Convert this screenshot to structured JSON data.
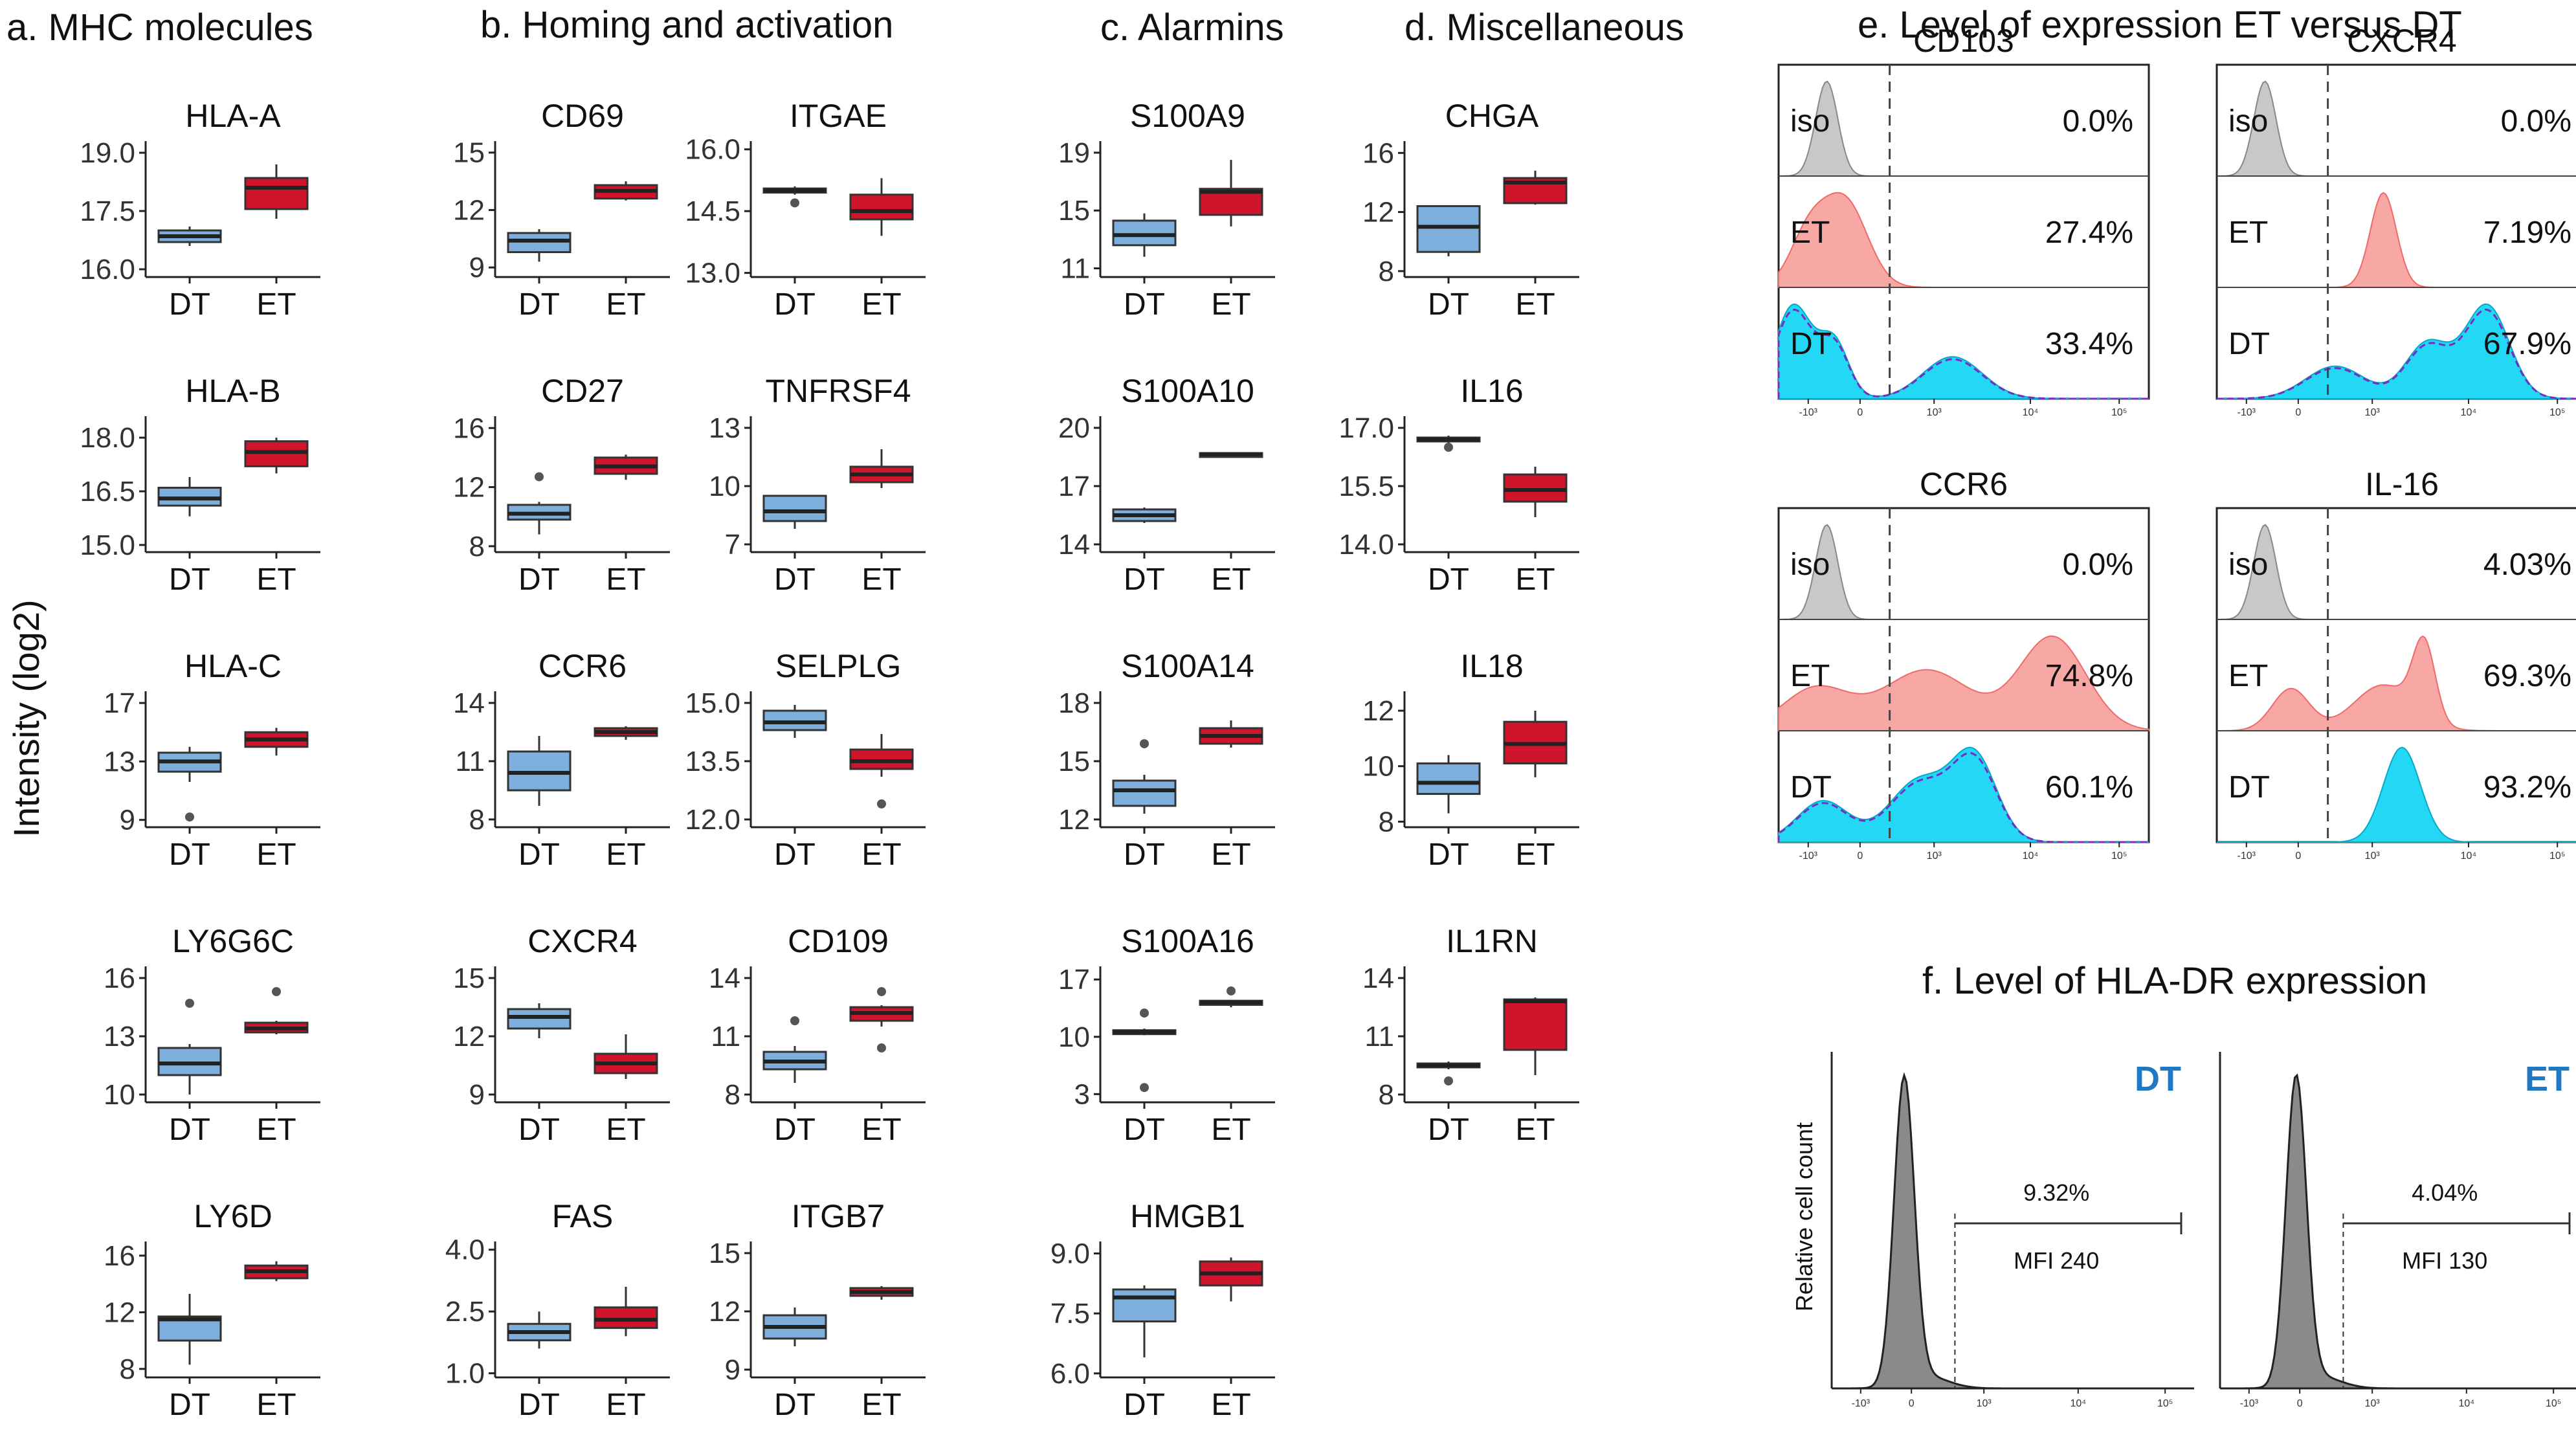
{
  "y_axis_label": "Intensity (log2)",
  "colors": {
    "DT": "#7eaedb",
    "ET": "#d0142c",
    "iso": "#c8c8c8",
    "ET_hist": "#f7a7a4",
    "DT_hist": "#22d8f5",
    "DT_label": "#1f78c4",
    "hladr_fill": "#8a8a8a"
  },
  "chart_data": [
    {
      "type": "box",
      "panel": "a",
      "section_title": "a. MHC molecules",
      "title": "HLA-A",
      "yticks": [
        "16.0",
        "17.5",
        "19.0"
      ],
      "ylim": [
        15.8,
        19.3
      ],
      "categories": [
        "DT",
        "ET"
      ],
      "boxes": [
        {
          "group": "DT",
          "min": 16.6,
          "q1": 16.7,
          "median": 16.85,
          "q3": 17.0,
          "max": 17.1,
          "outliers": []
        },
        {
          "group": "ET",
          "min": 17.3,
          "q1": 17.55,
          "median": 18.1,
          "q3": 18.35,
          "max": 18.7,
          "outliers": []
        }
      ]
    },
    {
      "type": "box",
      "panel": "a",
      "title": "HLA-B",
      "yticks": [
        "15.0",
        "16.5",
        "18.0"
      ],
      "ylim": [
        14.8,
        18.6
      ],
      "categories": [
        "DT",
        "ET"
      ],
      "boxes": [
        {
          "group": "DT",
          "min": 15.8,
          "q1": 16.1,
          "median": 16.3,
          "q3": 16.6,
          "max": 16.9,
          "outliers": []
        },
        {
          "group": "ET",
          "min": 17.0,
          "q1": 17.2,
          "median": 17.6,
          "q3": 17.9,
          "max": 18.0,
          "outliers": []
        }
      ]
    },
    {
      "type": "box",
      "panel": "a",
      "title": "HLA-C",
      "yticks": [
        "9",
        "13",
        "17"
      ],
      "ylim": [
        8.5,
        17.8
      ],
      "categories": [
        "DT",
        "ET"
      ],
      "boxes": [
        {
          "group": "DT",
          "min": 11.6,
          "q1": 12.3,
          "median": 13.0,
          "q3": 13.6,
          "max": 14.0,
          "outliers": [
            9.2
          ]
        },
        {
          "group": "ET",
          "min": 13.4,
          "q1": 14.0,
          "median": 14.5,
          "q3": 15.0,
          "max": 15.3,
          "outliers": []
        }
      ]
    },
    {
      "type": "box",
      "panel": "a",
      "title": "LY6G6C",
      "yticks": [
        "10",
        "13",
        "16"
      ],
      "ylim": [
        9.6,
        16.6
      ],
      "categories": [
        "DT",
        "ET"
      ],
      "boxes": [
        {
          "group": "DT",
          "min": 10.0,
          "q1": 11.0,
          "median": 11.6,
          "q3": 12.4,
          "max": 12.6,
          "outliers": [
            14.7
          ]
        },
        {
          "group": "ET",
          "min": 13.1,
          "q1": 13.2,
          "median": 13.4,
          "q3": 13.7,
          "max": 13.8,
          "outliers": [
            15.3
          ]
        }
      ]
    },
    {
      "type": "box",
      "panel": "a",
      "title": "LY6D",
      "yticks": [
        "8",
        "12",
        "16"
      ],
      "ylim": [
        7.4,
        17.0
      ],
      "categories": [
        "DT",
        "ET"
      ],
      "boxes": [
        {
          "group": "DT",
          "min": 8.3,
          "q1": 10.0,
          "median": 11.5,
          "q3": 11.7,
          "max": 13.3,
          "outliers": []
        },
        {
          "group": "ET",
          "min": 14.2,
          "q1": 14.4,
          "median": 14.9,
          "q3": 15.3,
          "max": 15.6,
          "outliers": []
        }
      ]
    },
    {
      "type": "box",
      "panel": "b",
      "section_title": "b. Homing and activation",
      "title": "CD69",
      "yticks": [
        "9",
        "12",
        "15"
      ],
      "ylim": [
        8.5,
        15.6
      ],
      "categories": [
        "DT",
        "ET"
      ],
      "boxes": [
        {
          "group": "DT",
          "min": 9.3,
          "q1": 9.8,
          "median": 10.4,
          "q3": 10.8,
          "max": 11.0,
          "outliers": []
        },
        {
          "group": "ET",
          "min": 12.5,
          "q1": 12.6,
          "median": 13.0,
          "q3": 13.3,
          "max": 13.5,
          "outliers": []
        }
      ]
    },
    {
      "type": "box",
      "panel": "b",
      "title": "CD27",
      "yticks": [
        "8",
        "12",
        "16"
      ],
      "ylim": [
        7.6,
        16.8
      ],
      "categories": [
        "DT",
        "ET"
      ],
      "boxes": [
        {
          "group": "DT",
          "min": 8.8,
          "q1": 9.8,
          "median": 10.2,
          "q3": 10.8,
          "max": 11.0,
          "outliers": [
            12.7
          ]
        },
        {
          "group": "ET",
          "min": 12.5,
          "q1": 12.9,
          "median": 13.4,
          "q3": 14.0,
          "max": 14.2,
          "outliers": []
        }
      ]
    },
    {
      "type": "box",
      "panel": "b",
      "title": "CCR6",
      "yticks": [
        "8",
        "11",
        "14"
      ],
      "ylim": [
        7.6,
        14.6
      ],
      "categories": [
        "DT",
        "ET"
      ],
      "boxes": [
        {
          "group": "DT",
          "min": 8.7,
          "q1": 9.5,
          "median": 10.4,
          "q3": 11.5,
          "max": 12.3,
          "outliers": []
        },
        {
          "group": "ET",
          "min": 12.1,
          "q1": 12.3,
          "median": 12.5,
          "q3": 12.7,
          "max": 12.8,
          "outliers": []
        }
      ]
    },
    {
      "type": "box",
      "panel": "b",
      "title": "CXCR4",
      "yticks": [
        "9",
        "12",
        "15"
      ],
      "ylim": [
        8.6,
        15.6
      ],
      "categories": [
        "DT",
        "ET"
      ],
      "boxes": [
        {
          "group": "DT",
          "min": 11.9,
          "q1": 12.4,
          "median": 13.0,
          "q3": 13.4,
          "max": 13.7,
          "outliers": []
        },
        {
          "group": "ET",
          "min": 9.8,
          "q1": 10.1,
          "median": 10.6,
          "q3": 11.1,
          "max": 12.1,
          "outliers": []
        }
      ]
    },
    {
      "type": "box",
      "panel": "b",
      "title": "FAS",
      "yticks": [
        "1.0",
        "2.5",
        "4.0"
      ],
      "ylim": [
        0.9,
        4.2
      ],
      "categories": [
        "DT",
        "ET"
      ],
      "boxes": [
        {
          "group": "DT",
          "min": 1.6,
          "q1": 1.8,
          "median": 2.0,
          "q3": 2.2,
          "max": 2.5,
          "outliers": []
        },
        {
          "group": "ET",
          "min": 1.9,
          "q1": 2.1,
          "median": 2.3,
          "q3": 2.6,
          "max": 3.1,
          "outliers": []
        }
      ]
    },
    {
      "type": "box",
      "panel": "b",
      "title": "ITGAE",
      "yticks": [
        "13.0",
        "14.5",
        "16.0"
      ],
      "ylim": [
        12.9,
        16.2
      ],
      "categories": [
        "DT",
        "ET"
      ],
      "boxes": [
        {
          "group": "DT",
          "min": 14.9,
          "q1": 14.95,
          "median": 15.0,
          "q3": 15.05,
          "max": 15.1,
          "outliers": [
            14.7
          ]
        },
        {
          "group": "ET",
          "min": 13.9,
          "q1": 14.3,
          "median": 14.5,
          "q3": 14.9,
          "max": 15.3,
          "outliers": []
        }
      ]
    },
    {
      "type": "box",
      "panel": "b",
      "title": "TNFRSF4",
      "yticks": [
        "7",
        "10",
        "13"
      ],
      "ylim": [
        6.6,
        13.6
      ],
      "categories": [
        "DT",
        "ET"
      ],
      "boxes": [
        {
          "group": "DT",
          "min": 7.8,
          "q1": 8.2,
          "median": 8.7,
          "q3": 9.5,
          "max": 9.5,
          "outliers": []
        },
        {
          "group": "ET",
          "min": 9.9,
          "q1": 10.2,
          "median": 10.6,
          "q3": 11.0,
          "max": 11.9,
          "outliers": []
        }
      ]
    },
    {
      "type": "box",
      "panel": "b",
      "title": "SELPLG",
      "yticks": [
        "12.0",
        "13.5",
        "15.0"
      ],
      "ylim": [
        11.8,
        15.3
      ],
      "categories": [
        "DT",
        "ET"
      ],
      "boxes": [
        {
          "group": "DT",
          "min": 14.1,
          "q1": 14.3,
          "median": 14.5,
          "q3": 14.8,
          "max": 14.95,
          "outliers": []
        },
        {
          "group": "ET",
          "min": 13.1,
          "q1": 13.3,
          "median": 13.5,
          "q3": 13.8,
          "max": 14.2,
          "outliers": [
            12.4
          ]
        }
      ]
    },
    {
      "type": "box",
      "panel": "b",
      "title": "CD109",
      "yticks": [
        "8",
        "11",
        "14"
      ],
      "ylim": [
        7.6,
        14.6
      ],
      "categories": [
        "DT",
        "ET"
      ],
      "boxes": [
        {
          "group": "DT",
          "min": 8.6,
          "q1": 9.3,
          "median": 9.7,
          "q3": 10.2,
          "max": 10.5,
          "outliers": [
            11.8
          ]
        },
        {
          "group": "ET",
          "min": 11.5,
          "q1": 11.8,
          "median": 12.2,
          "q3": 12.5,
          "max": 12.6,
          "outliers": [
            13.3,
            10.4
          ]
        }
      ]
    },
    {
      "type": "box",
      "panel": "b",
      "title": "ITGB7",
      "yticks": [
        "9",
        "12",
        "15"
      ],
      "ylim": [
        8.6,
        15.6
      ],
      "categories": [
        "DT",
        "ET"
      ],
      "boxes": [
        {
          "group": "DT",
          "min": 10.2,
          "q1": 10.6,
          "median": 11.2,
          "q3": 11.8,
          "max": 12.2,
          "outliers": []
        },
        {
          "group": "ET",
          "min": 12.6,
          "q1": 12.8,
          "median": 13.0,
          "q3": 13.2,
          "max": 13.3,
          "outliers": []
        }
      ]
    },
    {
      "type": "box",
      "panel": "c",
      "section_title": "c. Alarmins",
      "title": "S100A9",
      "yticks": [
        "11",
        "15",
        "19"
      ],
      "ylim": [
        10.4,
        19.8
      ],
      "categories": [
        "DT",
        "ET"
      ],
      "boxes": [
        {
          "group": "DT",
          "min": 11.8,
          "q1": 12.6,
          "median": 13.3,
          "q3": 14.3,
          "max": 14.8,
          "outliers": []
        },
        {
          "group": "ET",
          "min": 13.9,
          "q1": 14.7,
          "median": 16.3,
          "q3": 16.5,
          "max": 18.5,
          "outliers": []
        }
      ]
    },
    {
      "type": "box",
      "panel": "c",
      "title": "S100A10",
      "yticks": [
        "14",
        "17",
        "20"
      ],
      "ylim": [
        13.6,
        20.6
      ],
      "categories": [
        "DT",
        "ET"
      ],
      "boxes": [
        {
          "group": "DT",
          "min": 15.1,
          "q1": 15.2,
          "median": 15.5,
          "q3": 15.8,
          "max": 15.9,
          "outliers": []
        },
        {
          "group": "ET",
          "min": 18.55,
          "q1": 18.6,
          "median": 18.65,
          "q3": 18.7,
          "max": 18.75,
          "outliers": []
        }
      ]
    },
    {
      "type": "box",
      "panel": "c",
      "title": "S100A14",
      "yticks": [
        "12",
        "15",
        "18"
      ],
      "ylim": [
        11.6,
        18.6
      ],
      "categories": [
        "DT",
        "ET"
      ],
      "boxes": [
        {
          "group": "DT",
          "min": 12.3,
          "q1": 12.7,
          "median": 13.5,
          "q3": 14.0,
          "max": 14.3,
          "outliers": [
            15.9
          ]
        },
        {
          "group": "ET",
          "min": 15.7,
          "q1": 15.9,
          "median": 16.3,
          "q3": 16.7,
          "max": 17.1,
          "outliers": []
        }
      ]
    },
    {
      "type": "box",
      "panel": "c",
      "title": "S100A16",
      "yticks": [
        "3",
        "10",
        "17"
      ],
      "ylim": [
        2.0,
        18.6
      ],
      "categories": [
        "DT",
        "ET"
      ],
      "boxes": [
        {
          "group": "DT",
          "min": 10.2,
          "q1": 10.4,
          "median": 10.6,
          "q3": 10.8,
          "max": 11.0,
          "outliers": [
            12.9,
            3.8
          ]
        },
        {
          "group": "ET",
          "min": 13.6,
          "q1": 13.9,
          "median": 14.2,
          "q3": 14.4,
          "max": 14.5,
          "outliers": [
            15.6
          ]
        }
      ]
    },
    {
      "type": "box",
      "panel": "c",
      "title": "HMGB1",
      "yticks": [
        "6.0",
        "7.5",
        "9.0"
      ],
      "ylim": [
        5.9,
        9.3
      ],
      "categories": [
        "DT",
        "ET"
      ],
      "boxes": [
        {
          "group": "DT",
          "min": 6.4,
          "q1": 7.3,
          "median": 7.9,
          "q3": 8.1,
          "max": 8.2,
          "outliers": []
        },
        {
          "group": "ET",
          "min": 7.8,
          "q1": 8.2,
          "median": 8.5,
          "q3": 8.8,
          "max": 8.9,
          "outliers": []
        }
      ]
    },
    {
      "type": "box",
      "panel": "d",
      "section_title": "d. Miscellaneous",
      "title": "CHGA",
      "yticks": [
        "8",
        "12",
        "16"
      ],
      "ylim": [
        7.6,
        16.8
      ],
      "categories": [
        "DT",
        "ET"
      ],
      "boxes": [
        {
          "group": "DT",
          "min": 9.0,
          "q1": 9.3,
          "median": 11.0,
          "q3": 12.4,
          "max": 12.4,
          "outliers": []
        },
        {
          "group": "ET",
          "min": 12.5,
          "q1": 12.6,
          "median": 14.0,
          "q3": 14.3,
          "max": 14.8,
          "outliers": []
        }
      ]
    },
    {
      "type": "box",
      "panel": "d",
      "title": "IL16",
      "yticks": [
        "14.0",
        "15.5",
        "17.0"
      ],
      "ylim": [
        13.8,
        17.3
      ],
      "categories": [
        "DT",
        "ET"
      ],
      "boxes": [
        {
          "group": "DT",
          "min": 16.6,
          "q1": 16.65,
          "median": 16.7,
          "q3": 16.75,
          "max": 16.8,
          "outliers": [
            16.5
          ]
        },
        {
          "group": "ET",
          "min": 14.7,
          "q1": 15.1,
          "median": 15.4,
          "q3": 15.8,
          "max": 16.0,
          "outliers": []
        }
      ]
    },
    {
      "type": "box",
      "panel": "d",
      "title": "IL18",
      "yticks": [
        "8",
        "10",
        "12"
      ],
      "ylim": [
        7.8,
        12.7
      ],
      "categories": [
        "DT",
        "ET"
      ],
      "boxes": [
        {
          "group": "DT",
          "min": 8.3,
          "q1": 9.0,
          "median": 9.4,
          "q3": 10.1,
          "max": 10.4,
          "outliers": []
        },
        {
          "group": "ET",
          "min": 9.6,
          "q1": 10.1,
          "median": 10.8,
          "q3": 11.6,
          "max": 12.0,
          "outliers": []
        }
      ]
    },
    {
      "type": "box",
      "panel": "d",
      "title": "IL1RN",
      "yticks": [
        "8",
        "11",
        "14"
      ],
      "ylim": [
        7.6,
        14.6
      ],
      "categories": [
        "DT",
        "ET"
      ],
      "boxes": [
        {
          "group": "DT",
          "min": 9.3,
          "q1": 9.4,
          "median": 9.5,
          "q3": 9.6,
          "max": 9.7,
          "outliers": [
            8.7
          ]
        },
        {
          "group": "ET",
          "min": 9.0,
          "q1": 10.3,
          "median": 12.8,
          "q3": 12.9,
          "max": 13.0,
          "outliers": []
        }
      ]
    }
  ],
  "flow_section_title": "e. Level of expression ET versus DT",
  "flow_rows": [
    "iso",
    "ET",
    "DT"
  ],
  "flow_xticks": [
    "-10³",
    "0",
    "10³",
    "10⁴",
    "10⁵"
  ],
  "flow_panels": [
    {
      "title": "CD103",
      "percents": [
        "0.0%",
        "27.4%",
        "33.4%"
      ]
    },
    {
      "title": "CXCR4",
      "percents": [
        "0.0%",
        "7.19%",
        "67.9%"
      ]
    },
    {
      "title": "CCR6",
      "percents": [
        "0.0%",
        "74.8%",
        "60.1%"
      ]
    },
    {
      "title": "IL-16",
      "percents": [
        "4.03%",
        "69.3%",
        "93.2%"
      ]
    }
  ],
  "hladr_section_title": "f. Level of HLA-DR expression",
  "hladr_ylabel": "Relative cell count",
  "hladr_panels": [
    {
      "label": "DT",
      "percent": "9.32%",
      "mfi": "MFI 240"
    },
    {
      "label": "ET",
      "percent": "4.04%",
      "mfi": "MFI 130"
    }
  ]
}
